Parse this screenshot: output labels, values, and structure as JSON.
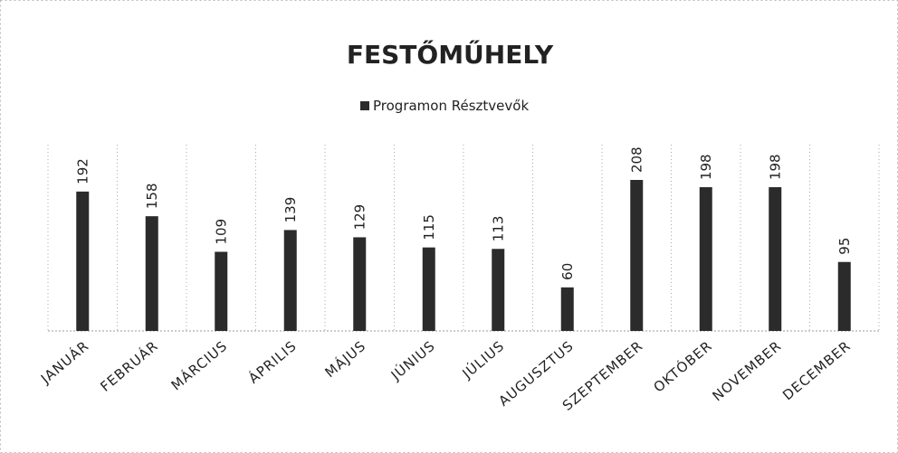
{
  "chart_data": {
    "type": "bar",
    "title": "FESTŐMŰHELY",
    "series": [
      {
        "name": "Programon Résztvevők",
        "color": "#2b2b2b",
        "values": [
          192,
          158,
          109,
          139,
          129,
          115,
          113,
          60,
          208,
          198,
          198,
          95
        ]
      }
    ],
    "categories": [
      "JANUÁR",
      "FEBRUÁR",
      "MÁRCIUS",
      "ÁPRILIS",
      "MÁJUS",
      "JÚNIUS",
      "JÚLIUS",
      "AUGUSZTUS",
      "SZEPTEMBER",
      "OKTÓBER",
      "NOVEMBER",
      "DECEMBER"
    ],
    "legend": "top"
  }
}
